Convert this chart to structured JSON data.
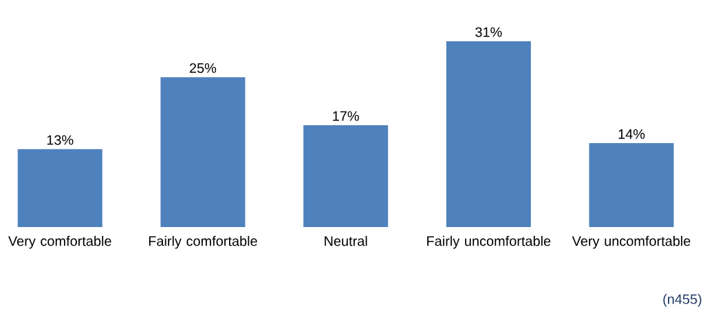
{
  "chart_data": {
    "type": "bar",
    "categories": [
      "Very comfortable",
      "Fairly comfortable",
      "Neutral",
      "Fairly uncomfortable",
      "Very uncomfortable"
    ],
    "values": [
      13,
      25,
      17,
      31,
      14
    ],
    "value_labels": [
      "13%",
      "25%",
      "17%",
      "31%",
      "14%"
    ],
    "color": "#4f81bd",
    "annotations": [
      "(n455)"
    ]
  }
}
